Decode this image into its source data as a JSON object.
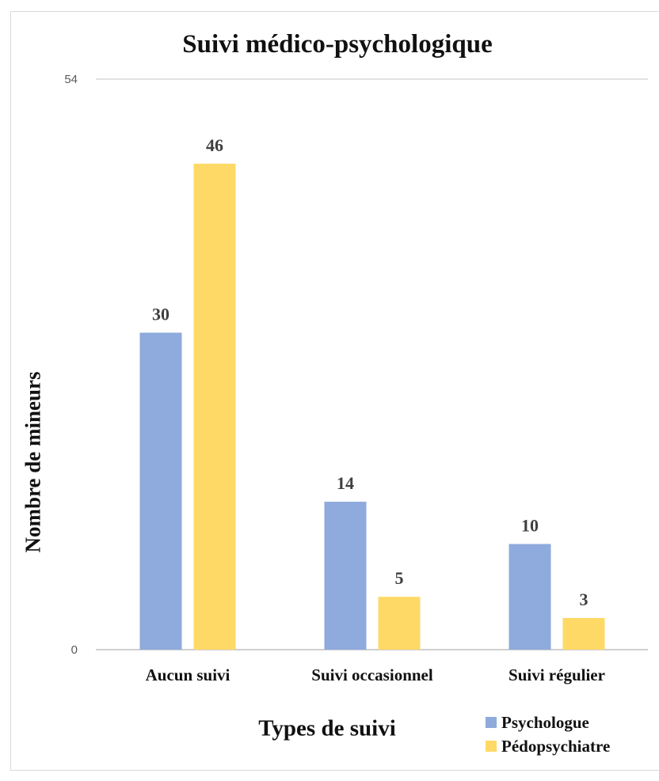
{
  "chart_data": {
    "type": "bar",
    "title": "Suivi médico-psychologique",
    "xlabel": "Types de suivi",
    "ylabel": "Nombre de mineurs",
    "categories": [
      "Aucun suivi",
      "Suivi occasionnel",
      "Suivi régulier"
    ],
    "series": [
      {
        "name": "Psychologue",
        "values": [
          30,
          14,
          10
        ],
        "color": "#8faadc"
      },
      {
        "name": "Pédopsychiatre",
        "values": [
          46,
          5,
          3
        ],
        "color": "#ffd966"
      }
    ],
    "ylim": [
      0,
      54
    ],
    "yticks": [
      "0",
      "54"
    ],
    "grid": true,
    "data_labels": true,
    "legend_position": "bottom-right"
  }
}
